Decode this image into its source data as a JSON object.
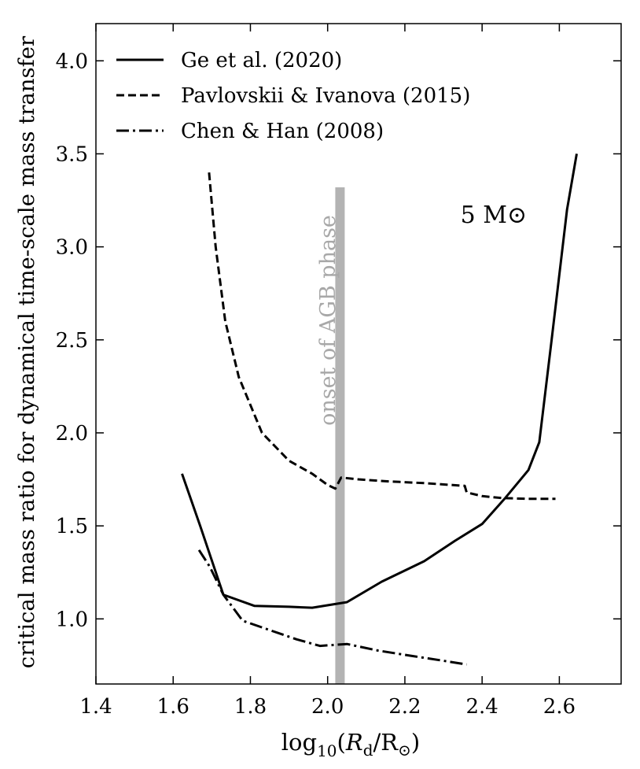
{
  "chart_data": {
    "type": "line",
    "title": "",
    "xlabel": "log10(Rd/R⊙)",
    "xlabel_parts": {
      "prefix": "log",
      "sub": "10",
      "open": "(",
      "var": "R",
      "var_sub": "d",
      "slash": "/R",
      "sun": "⊙",
      "close": ")"
    },
    "ylabel": "critical mass ratio for dynamical time-scale mass transfer",
    "xlim": [
      1.4,
      2.76
    ],
    "ylim": [
      0.65,
      4.2
    ],
    "xticks": [
      1.4,
      1.6,
      1.8,
      2.0,
      2.2,
      2.4,
      2.6
    ],
    "xtick_labels": [
      "1.4",
      "1.6",
      "1.8",
      "2.0",
      "2.2",
      "2.4",
      "2.6"
    ],
    "yticks": [
      1.0,
      1.5,
      2.0,
      2.5,
      3.0,
      3.5,
      4.0
    ],
    "ytick_labels": [
      "1.0",
      "1.5",
      "2.0",
      "2.5",
      "3.0",
      "3.5",
      "4.0"
    ],
    "legend_position": "top-left",
    "series": [
      {
        "name": "Ge et al. (2020)",
        "style": "solid",
        "x": [
          1.623,
          1.67,
          1.73,
          1.81,
          1.9,
          1.96,
          2.05,
          2.14,
          2.25,
          2.33,
          2.4,
          2.46,
          2.52,
          2.548,
          2.58,
          2.62,
          2.645
        ],
        "y": [
          1.78,
          1.5,
          1.13,
          1.07,
          1.065,
          1.06,
          1.09,
          1.2,
          1.31,
          1.42,
          1.51,
          1.65,
          1.8,
          1.95,
          2.5,
          3.2,
          3.5
        ]
      },
      {
        "name": "Pavlovskii & Ivanova (2015)",
        "style": "dashed",
        "x": [
          1.693,
          1.71,
          1.735,
          1.77,
          1.83,
          1.9,
          1.96,
          2.0,
          2.02,
          2.035,
          2.08,
          2.15,
          2.25,
          2.355,
          2.36,
          2.4,
          2.45,
          2.52,
          2.59
        ],
        "y": [
          3.4,
          3.0,
          2.6,
          2.3,
          2.0,
          1.85,
          1.78,
          1.72,
          1.7,
          1.76,
          1.75,
          1.74,
          1.73,
          1.715,
          1.68,
          1.66,
          1.65,
          1.645,
          1.645
        ]
      },
      {
        "name": "Chen & Han (2008)",
        "style": "dashdot",
        "x": [
          1.667,
          1.695,
          1.73,
          1.78,
          1.85,
          1.92,
          1.98,
          2.05,
          2.13,
          2.22,
          2.3,
          2.36
        ],
        "y": [
          1.37,
          1.28,
          1.13,
          0.99,
          0.94,
          0.89,
          0.855,
          0.865,
          0.83,
          0.8,
          0.775,
          0.755
        ]
      }
    ],
    "annotations": [
      {
        "text": "onset of AGB phase",
        "x": 2.032,
        "y_range": [
          0.65,
          3.32
        ],
        "orientation": "vertical",
        "color": "#b3b3b3"
      },
      {
        "text": "5 M⊙",
        "x": 2.43,
        "y": 3.15
      }
    ]
  }
}
